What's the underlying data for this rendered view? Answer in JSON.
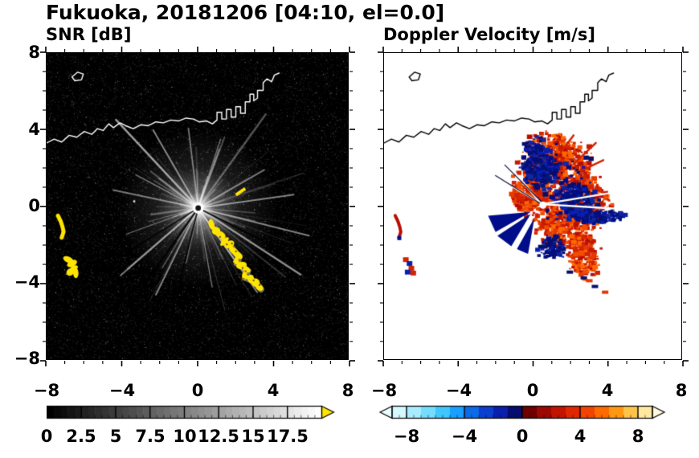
{
  "title": "Fukuoka, 20181206 [04:10, el=0.0]",
  "panels": {
    "snr": {
      "title": "SNR [dB]",
      "x_tick_labels": [
        "−8",
        "−4",
        "0",
        "4",
        "8"
      ],
      "y_tick_labels": [
        "8",
        "4",
        "0",
        "−4",
        "−8"
      ],
      "cbar_labels": [
        "0",
        "2.5",
        "5",
        "7.5",
        "10",
        "12.5",
        "15",
        "17.5"
      ]
    },
    "doppler": {
      "title": "Doppler Velocity [m/s]",
      "x_tick_labels": [
        "−8",
        "−4",
        "0",
        "4",
        "8"
      ],
      "cbar_labels": [
        "−8",
        "−4",
        "0",
        "4",
        "8"
      ]
    }
  },
  "chart_data": [
    {
      "type": "heatmap",
      "title": "SNR [dB]",
      "xlabel": "",
      "ylabel": "",
      "xlim": [
        -8,
        8
      ],
      "ylim": [
        -8,
        8
      ],
      "x_ticks": [
        -8,
        -4,
        0,
        4,
        8
      ],
      "y_ticks": [
        8,
        4,
        0,
        -4,
        -8
      ],
      "grid": false,
      "colorbar": {
        "orientation": "horizontal",
        "range": [
          0,
          20
        ],
        "tick_labels": [
          0,
          2.5,
          5,
          7.5,
          10,
          12.5,
          15,
          17.5
        ],
        "colormap": "grayscale black(0) to white(20), yellow overflow arrow"
      },
      "description": "Radar SNR field: dark speckle-noise background, bright radial beam starburst centered at the radar origin near (0,0), high-SNR yellow echo chain from (0.8,-1.0) to (3.3,-4.3), yellow echoes near (-7.2,-1) and (-6.7,-3.2), small yellow dash near (2.3,0.8), white coastline overlay along y≈3.3-7 with harbor structures near x=1..4"
    },
    {
      "type": "heatmap",
      "title": "Doppler Velocity [m/s]",
      "xlabel": "",
      "ylabel": "",
      "xlim": [
        -8,
        8
      ],
      "ylim": [
        -8,
        8
      ],
      "x_ticks": [
        -8,
        -4,
        0,
        4,
        8
      ],
      "y_ticks": [
        8,
        4,
        0,
        -4,
        -8
      ],
      "grid": false,
      "colorbar": {
        "orientation": "horizontal",
        "range": [
          -9,
          9
        ],
        "tick_labels": [
          -8,
          -4,
          0,
          4,
          8
        ],
        "colormap": "pale cyan → blue → dark navy (negative) | dark red → orange → pale yellow (positive), arrows both ends"
      },
      "description": "Doppler velocity of the echo cell spanning x:-1..4.5, y:-3..3.5: mostly receding (red, +1..+5 m/s) with approaching (dark blue, -2..-9 m/s) patches at (0.5,2), (2.4,0), an elongated blue spur near (3.5,-0.6), blue wedge fan toward lower-left, white radial gaps, small echoes near (-7.2,-1), (-6.7,-3.2) and (2.9,-3.9), black coastline overlay"
    }
  ],
  "colors": {
    "snr_echo": "#ffe400",
    "snr_overflow": "#ffe400",
    "red_palette": [
      "#b80d00",
      "#d32200",
      "#e63900",
      "#f24d00",
      "#c41a00",
      "#ff6a00"
    ],
    "blue_palette": [
      "#000d8a",
      "#0a1fae",
      "#070d6e",
      "#14279e",
      "#001477"
    ],
    "doppler_cmap": [
      "#d4f8ff",
      "#a8ecff",
      "#74dcff",
      "#3fc6ff",
      "#189fff",
      "#0b6ae8",
      "#0a3fd0",
      "#0b1fae",
      "#070d6e",
      "#6e0000",
      "#9c0900",
      "#c31400",
      "#e02800",
      "#f24400",
      "#fc6a00",
      "#ff9712",
      "#ffc34a",
      "#ffe9a0"
    ],
    "doppler_under": "#eafdff",
    "doppler_over": "#fffbe0"
  },
  "features": {
    "radar_center": [
      0.05,
      -0.1
    ],
    "center_hole": [
      0.55,
      0.05
    ],
    "bright_dot": [
      -3.4,
      0.3
    ],
    "coastline_main": [
      [
        -8,
        3.3
      ],
      [
        -7.6,
        3.5
      ],
      [
        -7.2,
        3.35
      ],
      [
        -6.8,
        3.7
      ],
      [
        -6.4,
        3.6
      ],
      [
        -6,
        3.9
      ],
      [
        -5.6,
        3.75
      ],
      [
        -5.3,
        4.05
      ],
      [
        -5,
        3.95
      ],
      [
        -4.7,
        4.3
      ],
      [
        -4.45,
        4.1
      ],
      [
        -4.1,
        4.35
      ],
      [
        -3.8,
        4.2
      ],
      [
        -3.4,
        4.05
      ],
      [
        -3,
        4.25
      ],
      [
        -2.6,
        4.2
      ],
      [
        -2.2,
        4.4
      ],
      [
        -1.8,
        4.35
      ],
      [
        -1.4,
        4.5
      ],
      [
        -1,
        4.45
      ],
      [
        -0.6,
        4.6
      ],
      [
        -0.2,
        4.55
      ],
      [
        0.1,
        4.4
      ],
      [
        0.5,
        4.45
      ],
      [
        0.8,
        4.3
      ],
      [
        1.05,
        4.5
      ],
      [
        1.05,
        4.9
      ],
      [
        1.3,
        4.9
      ],
      [
        1.3,
        4.55
      ],
      [
        1.55,
        4.55
      ],
      [
        1.55,
        5.05
      ],
      [
        1.8,
        5.05
      ],
      [
        1.8,
        4.65
      ],
      [
        2.05,
        4.65
      ],
      [
        2.05,
        5.2
      ],
      [
        2.3,
        5.2
      ],
      [
        2.3,
        4.85
      ],
      [
        2.55,
        4.85
      ],
      [
        2.55,
        5.45
      ],
      [
        2.8,
        5.45
      ],
      [
        2.8,
        5.85
      ],
      [
        3,
        5.85
      ],
      [
        3,
        5.5
      ],
      [
        3.2,
        5.65
      ],
      [
        3.2,
        6.05
      ],
      [
        3.5,
        6.05
      ],
      [
        3.5,
        6.45
      ],
      [
        3.7,
        6.65
      ],
      [
        3.95,
        6.5
      ],
      [
        4.1,
        6.85
      ],
      [
        4.35,
        6.95
      ]
    ],
    "coastline_island": [
      [
        -6.65,
        6.75
      ],
      [
        -6.35,
        7
      ],
      [
        -6.05,
        6.9
      ],
      [
        -6.15,
        6.6
      ],
      [
        -6.5,
        6.55
      ],
      [
        -6.65,
        6.75
      ]
    ],
    "echo_chain": [
      [
        0.75,
        -0.95
      ],
      [
        1,
        -1.3
      ],
      [
        1.25,
        -1.5
      ],
      [
        1.45,
        -1.85
      ],
      [
        1.7,
        -2
      ],
      [
        1.95,
        -2.35
      ],
      [
        2.15,
        -2.55
      ],
      [
        2.05,
        -2.9
      ],
      [
        2.35,
        -3.1
      ],
      [
        2.6,
        -3.3
      ],
      [
        2.5,
        -3.65
      ],
      [
        2.85,
        -3.8
      ],
      [
        3.1,
        -4
      ],
      [
        3.3,
        -4.25
      ]
    ],
    "arc_points": [
      [
        -7.4,
        -0.5
      ],
      [
        -7.25,
        -0.8
      ],
      [
        -7.15,
        -1.1
      ],
      [
        -7.1,
        -1.35
      ],
      [
        -7.2,
        -1.65
      ]
    ],
    "blob_points": [
      [
        -6.85,
        -2.8
      ],
      [
        -6.65,
        -3
      ],
      [
        -6.55,
        -3.25
      ],
      [
        -6.75,
        -3.45
      ],
      [
        -6.45,
        -3.5
      ]
    ],
    "br_points": [
      [
        2.75,
        -3.75
      ],
      [
        3.05,
        -3.9
      ],
      [
        3.35,
        -4.2
      ],
      [
        3.9,
        -4.5
      ],
      [
        2,
        -3.45
      ]
    ],
    "yellow_dash": [
      2.3,
      0.75
    ],
    "bright_rays": [
      [
        133,
        150,
        2.5,
        0.6
      ],
      [
        120,
        112,
        2,
        0.5
      ],
      [
        97,
        100,
        1.8,
        0.45
      ],
      [
        72,
        90,
        1.5,
        0.4
      ],
      [
        30,
        95,
        1.8,
        0.45
      ],
      [
        8,
        120,
        2,
        0.5
      ],
      [
        -14,
        142,
        2,
        0.5
      ],
      [
        -33,
        152,
        2.4,
        0.55
      ],
      [
        -55,
        128,
        2,
        0.5
      ],
      [
        -80,
        100,
        1.5,
        0.4
      ],
      [
        -116,
        120,
        2,
        0.5
      ],
      [
        -139,
        128,
        2,
        0.45
      ],
      [
        168,
        108,
        2,
        0.45
      ],
      [
        152,
        88,
        1.5,
        0.4
      ],
      [
        -160,
        95,
        1.5,
        0.35
      ]
    ],
    "dark_lanes": [
      [
        -125,
        130,
        2.4
      ],
      [
        -104,
        112,
        1.8
      ],
      [
        -27,
        148,
        1.8
      ],
      [
        -148,
        118,
        1.5
      ]
    ],
    "red_groups": [
      {
        "c": [
          1.3,
          1.3
        ],
        "rx": 1.8,
        "ry": 1.8,
        "n": 620
      },
      {
        "c": [
          1,
          2.9
        ],
        "rx": 1.3,
        "ry": 0.8,
        "n": 200
      },
      {
        "c": [
          1.9,
          -1.1
        ],
        "rx": 1.4,
        "ry": 1.1,
        "n": 330
      },
      {
        "c": [
          2.8,
          -2.7
        ],
        "rx": 0.7,
        "ry": 0.85,
        "n": 150
      },
      {
        "c": [
          -0.3,
          0.5
        ],
        "rx": 0.8,
        "ry": 0.7,
        "n": 140
      },
      {
        "c": [
          3.1,
          0.4
        ],
        "rx": 0.9,
        "ry": 0.8,
        "n": 170
      }
    ],
    "blue_groups": [
      {
        "c": [
          0.45,
          2
        ],
        "rx": 0.85,
        "ry": 0.75,
        "n": 190
      },
      {
        "c": [
          2.4,
          0.15
        ],
        "rx": 0.85,
        "ry": 0.85,
        "n": 190
      },
      {
        "c": [
          3.5,
          -0.55
        ],
        "rx": 1.25,
        "ry": 0.3,
        "n": 120
      },
      {
        "c": [
          1,
          -2.2
        ],
        "rx": 0.65,
        "ry": 0.5,
        "n": 90
      },
      {
        "c": [
          1.6,
          1.2
        ],
        "rx": 1.5,
        "ry": 1.5,
        "n": 90
      },
      {
        "c": [
          0.1,
          3.1
        ],
        "rx": 0.5,
        "ry": 0.4,
        "n": 50
      }
    ],
    "blue_wedges": [
      [
        [
          -0.1,
          -0.3
        ],
        [
          -2.4,
          -0.5
        ],
        [
          -2,
          -1.35
        ]
      ],
      [
        [
          -0.1,
          -0.4
        ],
        [
          -1.9,
          -1.55
        ],
        [
          -1.15,
          -2.1
        ]
      ],
      [
        [
          0.1,
          -0.6
        ],
        [
          -0.85,
          -2.25
        ],
        [
          -0.25,
          -2.5
        ]
      ]
    ],
    "red_spikes": [
      [
        [
          2.2,
          2.2
        ],
        [
          3.4,
          3.3
        ]
      ],
      [
        [
          2.5,
          1.8
        ],
        [
          3.8,
          2.4
        ]
      ],
      [
        [
          1.5,
          2.8
        ],
        [
          2.2,
          3.7
        ]
      ]
    ],
    "white_gaps": [
      [
        [
          0.5,
          0.1
        ],
        [
          4.6,
          0.75
        ]
      ],
      [
        [
          0.5,
          0.1
        ],
        [
          4.7,
          -0.15
        ]
      ],
      [
        [
          0.45,
          0.15
        ],
        [
          -1.1,
          1.9
        ]
      ],
      [
        [
          0.45,
          0.15
        ],
        [
          -1.6,
          1.3
        ]
      ]
    ],
    "dark_lines": [
      [
        [
          0.5,
          0.2
        ],
        [
          -1.5,
          2.15
        ]
      ],
      [
        [
          0.4,
          0.15
        ],
        [
          -2,
          1.6
        ]
      ]
    ]
  }
}
